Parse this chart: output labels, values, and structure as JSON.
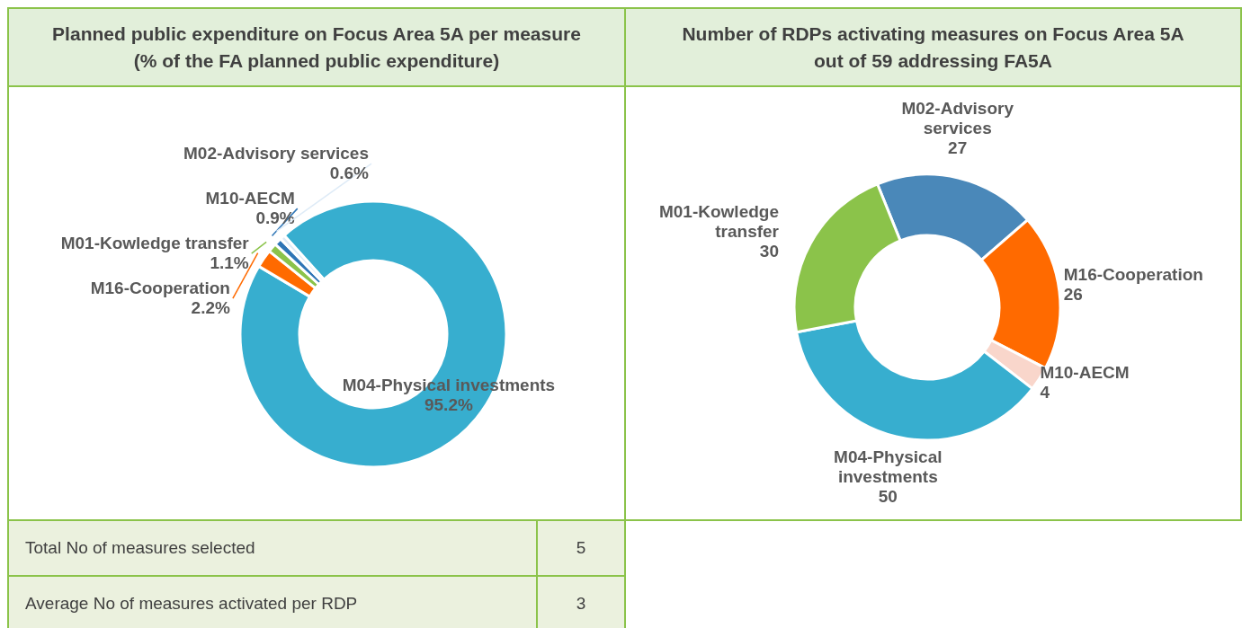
{
  "chart_data": [
    {
      "type": "donut",
      "title": "Planned public expenditure on Focus Area 5A per measure\n(% of the FA planned public expenditure)",
      "categories": [
        "M04-Physical investments",
        "M16-Cooperation",
        "M01-Kowledge transfer",
        "M10-AECM",
        "M02-Advisory services"
      ],
      "values": [
        95.2,
        2.2,
        1.1,
        0.9,
        0.6
      ],
      "colors": [
        "#37aecf",
        "#ff6a00",
        "#8bc34a",
        "#2e75b6",
        "#deebf7"
      ],
      "value_labels": [
        "95.2%",
        "2.2%",
        "1.1%",
        "0.9%",
        "0.6%"
      ]
    },
    {
      "type": "donut",
      "title": "Number of RDPs activating measures on Focus Area 5A\nout of 59 addressing FA5A",
      "categories": [
        "M02-Advisory services",
        "M16-Cooperation",
        "M10-AECM",
        "M04-Physical investments",
        "M01-Kowledge transfer"
      ],
      "values": [
        27,
        26,
        4,
        50,
        30
      ],
      "colors": [
        "#4a88b9",
        "#ff6a00",
        "#f9d6cb",
        "#37aecf",
        "#8bc34a"
      ],
      "data_labels": true
    },
    {
      "type": "other",
      "categories": [
        "Total No of measures selected",
        "Average No of measures activated per RDP"
      ],
      "values": [
        5,
        3
      ],
      "data_labels": true
    }
  ]
}
